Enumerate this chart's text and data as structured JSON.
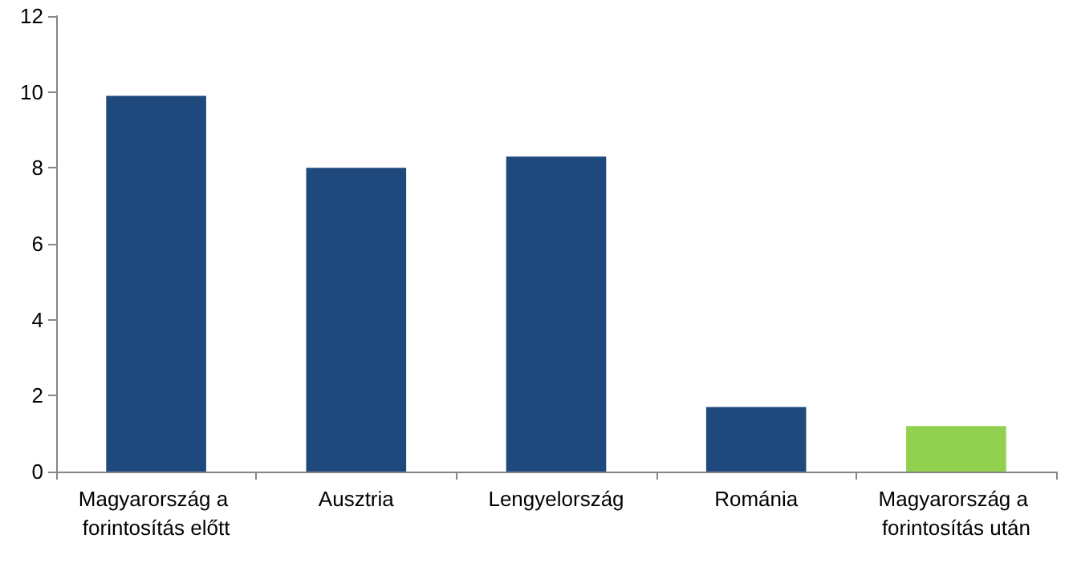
{
  "chart_data": {
    "type": "bar",
    "categories": [
      "Magyarország a forintosítás előtt",
      "Ausztria",
      "Lengyelország",
      "Románia",
      "Magyarország a forintosítás után"
    ],
    "values": [
      9.9,
      8.0,
      8.3,
      1.7,
      1.2
    ],
    "colors": [
      "#1f497d",
      "#1f497d",
      "#1f497d",
      "#1f497d",
      "#92d050"
    ],
    "ylim": [
      0,
      12
    ],
    "yticks": [
      0,
      2,
      4,
      6,
      8,
      10,
      12
    ]
  }
}
